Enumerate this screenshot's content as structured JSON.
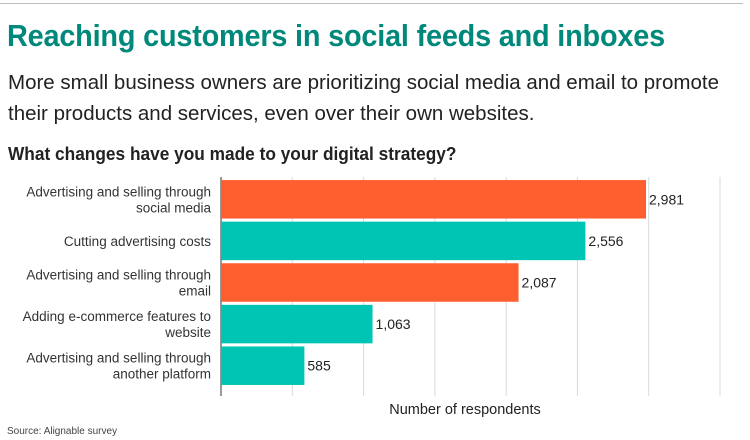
{
  "title": "Reaching customers in social feeds and inboxes",
  "subtitle": "More small business owners are prioritizing social media and email to promote their products and services, even over their own websites.",
  "question": "What changes have you made to your digital strategy?",
  "source": "Source: Alignable survey",
  "colors": {
    "title": "#00897b",
    "highlight": "#ff5f2e",
    "base": "#00c4b4",
    "grid": "#d9d9d9"
  },
  "chart_data": {
    "type": "bar",
    "orientation": "horizontal",
    "categories": [
      [
        "Advertising and selling through",
        "social media"
      ],
      [
        "Cutting advertising costs"
      ],
      [
        "Advertising and selling through",
        "email"
      ],
      [
        "Adding e-commerce features to",
        "website"
      ],
      [
        "Advertising and selling through",
        "another platform"
      ]
    ],
    "values": [
      2981,
      2556,
      2087,
      1063,
      585
    ],
    "value_labels": [
      "2,981",
      "2,556",
      "2,087",
      "1,063",
      "585"
    ],
    "bar_colors": [
      "highlight",
      "base",
      "highlight",
      "base",
      "base"
    ],
    "xlabel": "Number of respondents",
    "ylabel": "",
    "xlim": [
      0,
      3500
    ],
    "grid": true,
    "grid_step": 500
  }
}
